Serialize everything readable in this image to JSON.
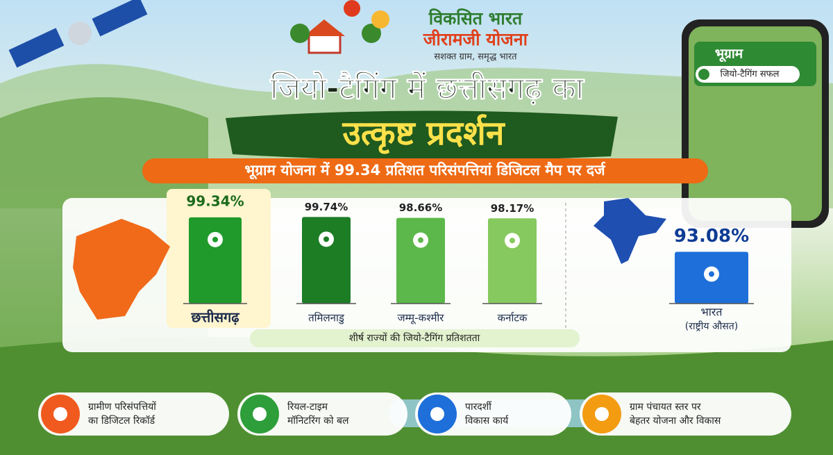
{
  "header": {
    "logo_line1": "विकसित भारत",
    "logo_line2": "जीरामजी योजना",
    "logo_tagline": "सशक्त ग्राम, समृद्ध भारत"
  },
  "title_line1": "जियो-टैगिंग में छत्तीसगढ़ का",
  "title_line2": "उत्कृष्ट प्रदर्शन",
  "banner": "भूग्राम योजना में 99.34 प्रतिशत परिसंपत्तियां डिजिटल मैप पर दर्ज",
  "phone": {
    "app_title": "भूग्राम",
    "status": "जियो-टैगिंग सफल"
  },
  "chart_data": [
    {
      "type": "bar",
      "caption": "शीर्ष राज्यों की जियो-टैगिंग प्रतिशतता",
      "categories": [
        "छत्तीसगढ़",
        "तमिलनाडु",
        "जम्मू-कश्मीर",
        "कर्नाटक"
      ],
      "values": [
        99.34,
        99.74,
        98.66,
        98.17
      ],
      "value_labels": [
        "99.34%",
        "99.74%",
        "98.66%",
        "98.17%"
      ],
      "colors": [
        "#1f9a2b",
        "#1c7d25",
        "#5cb84a",
        "#86c95e"
      ]
    },
    {
      "type": "bar",
      "categories": [
        "भारत"
      ],
      "category_notes": [
        "(राष्ट्रीय औसत)"
      ],
      "values": [
        93.08
      ],
      "value_labels": [
        "93.08%"
      ],
      "colors": [
        "#1e6fd9"
      ]
    }
  ],
  "features": [
    {
      "lines": [
        "ग्रामीण परिसंपत्तियों",
        "का डिजिटल रिकॉर्ड"
      ],
      "color": "#f05a1e"
    },
    {
      "lines": [
        "रियल-टाइम",
        "मॉनिटरिंग को बल"
      ],
      "color": "#2e9e3a"
    },
    {
      "lines": [
        "पारदर्शी",
        "विकास कार्य"
      ],
      "color": "#1e6fd9"
    },
    {
      "lines": [
        "ग्राम पंचायत स्तर पर",
        "बेहतर योजना और विकास"
      ],
      "color": "#f39c12"
    }
  ]
}
